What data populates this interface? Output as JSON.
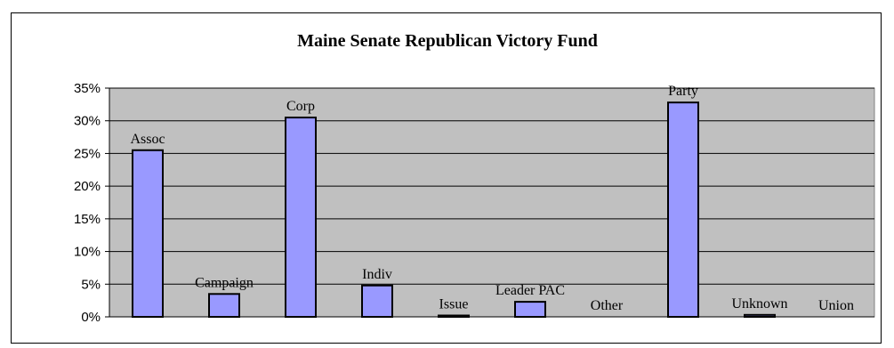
{
  "chart_data": {
    "type": "bar",
    "title": "Maine Senate Republican Victory Fund",
    "xlabel": "",
    "ylabel": "",
    "categories": [
      "Assoc",
      "Campaign",
      "Corp",
      "Indiv",
      "Issue",
      "Leader PAC",
      "Other",
      "Party",
      "Unknown",
      "Union"
    ],
    "values": [
      0.255,
      0.035,
      0.305,
      0.048,
      0.002,
      0.023,
      0.0,
      0.328,
      0.003,
      0.0
    ],
    "ylim": [
      0,
      0.35
    ],
    "yticks": [
      "0%",
      "5%",
      "10%",
      "15%",
      "20%",
      "25%",
      "30%",
      "35%"
    ],
    "grid": true,
    "legend": "none",
    "colors": {
      "bar_fill": "#9999ff",
      "bar_stroke": "#000000",
      "plot_bg": "#c0c0c0",
      "gridline": "#000000"
    }
  }
}
